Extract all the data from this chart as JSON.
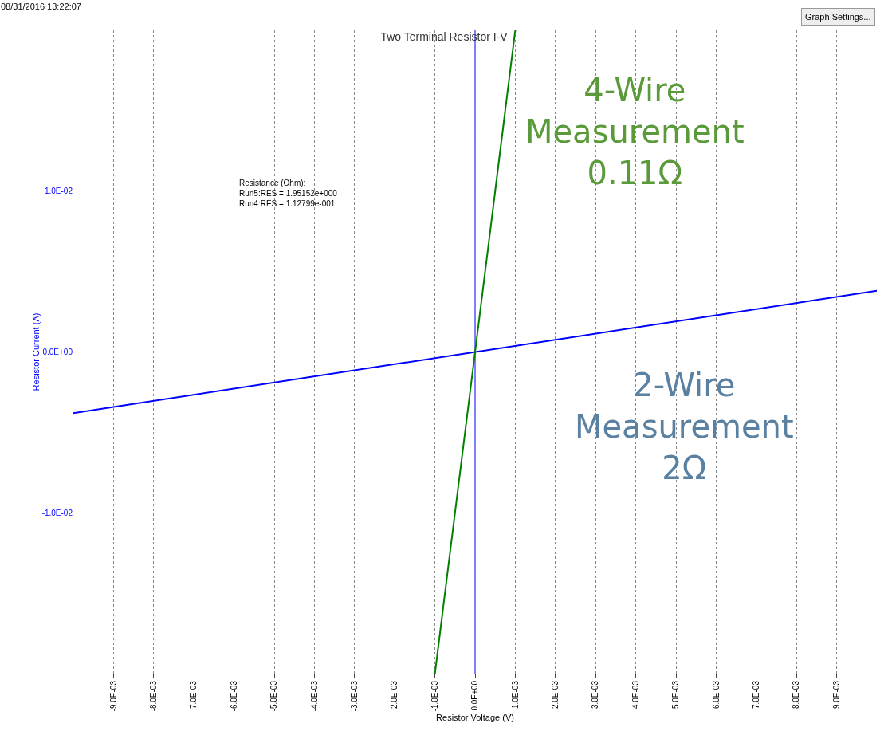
{
  "chart_data": {
    "type": "line",
    "title": "Two Terminal Resistor I-V",
    "xlabel": "Resistor Voltage (V)",
    "ylabel": "Resistor Current (A)",
    "xlim": [
      -0.01,
      0.01
    ],
    "ylim": [
      -0.02,
      0.02
    ],
    "xticks": [
      {
        "value": -0.009,
        "label": "-9.0E-03"
      },
      {
        "value": -0.008,
        "label": "-8.0E-03"
      },
      {
        "value": -0.007,
        "label": "-7.0E-03"
      },
      {
        "value": -0.006,
        "label": "-6.0E-03"
      },
      {
        "value": -0.005,
        "label": "-5.0E-03"
      },
      {
        "value": -0.004,
        "label": "-4.0E-03"
      },
      {
        "value": -0.003,
        "label": "-3.0E-03"
      },
      {
        "value": -0.002,
        "label": "-2.0E-03"
      },
      {
        "value": -0.001,
        "label": "-1.0E-03"
      },
      {
        "value": 0,
        "label": "0.0E+00"
      },
      {
        "value": 0.001,
        "label": "1.0E-03"
      },
      {
        "value": 0.002,
        "label": "2.0E-03"
      },
      {
        "value": 0.003,
        "label": "3.0E-03"
      },
      {
        "value": 0.004,
        "label": "4.0E-03"
      },
      {
        "value": 0.005,
        "label": "5.0E-03"
      },
      {
        "value": 0.006,
        "label": "6.0E-03"
      },
      {
        "value": 0.007,
        "label": "7.0E-03"
      },
      {
        "value": 0.008,
        "label": "8.0E-03"
      },
      {
        "value": 0.009,
        "label": "9.0E-03"
      }
    ],
    "yticks": [
      {
        "value": -0.01,
        "label": "-1.0E-02"
      },
      {
        "value": 0,
        "label": "0.0E+00"
      },
      {
        "value": 0.01,
        "label": "1.0E-02"
      }
    ],
    "grid": true,
    "marker": "none",
    "line_style": "solid",
    "ref_lines": [
      {
        "axis": "x",
        "value": 0,
        "color": "#0000ff"
      }
    ],
    "series": [
      {
        "color": "#0000ff",
        "x": [
          -0.01,
          0.01
        ],
        "values": [
          -0.0038,
          0.0038
        ]
      },
      {
        "color": "#008000",
        "x": [
          -0.001,
          0.001
        ],
        "values": [
          -0.02,
          0.02
        ]
      }
    ],
    "annotations": [
      "08/31/2016 13:22:07",
      "Graph Settings...",
      "Resistance (Ohm):\nRun5:RES = 1.95152e+000\nRun4:RES = 1.12799e-001",
      "4-Wire\nMeasurement\n0.11Ω",
      "2-Wire\nMeasurement\n2Ω"
    ]
  }
}
